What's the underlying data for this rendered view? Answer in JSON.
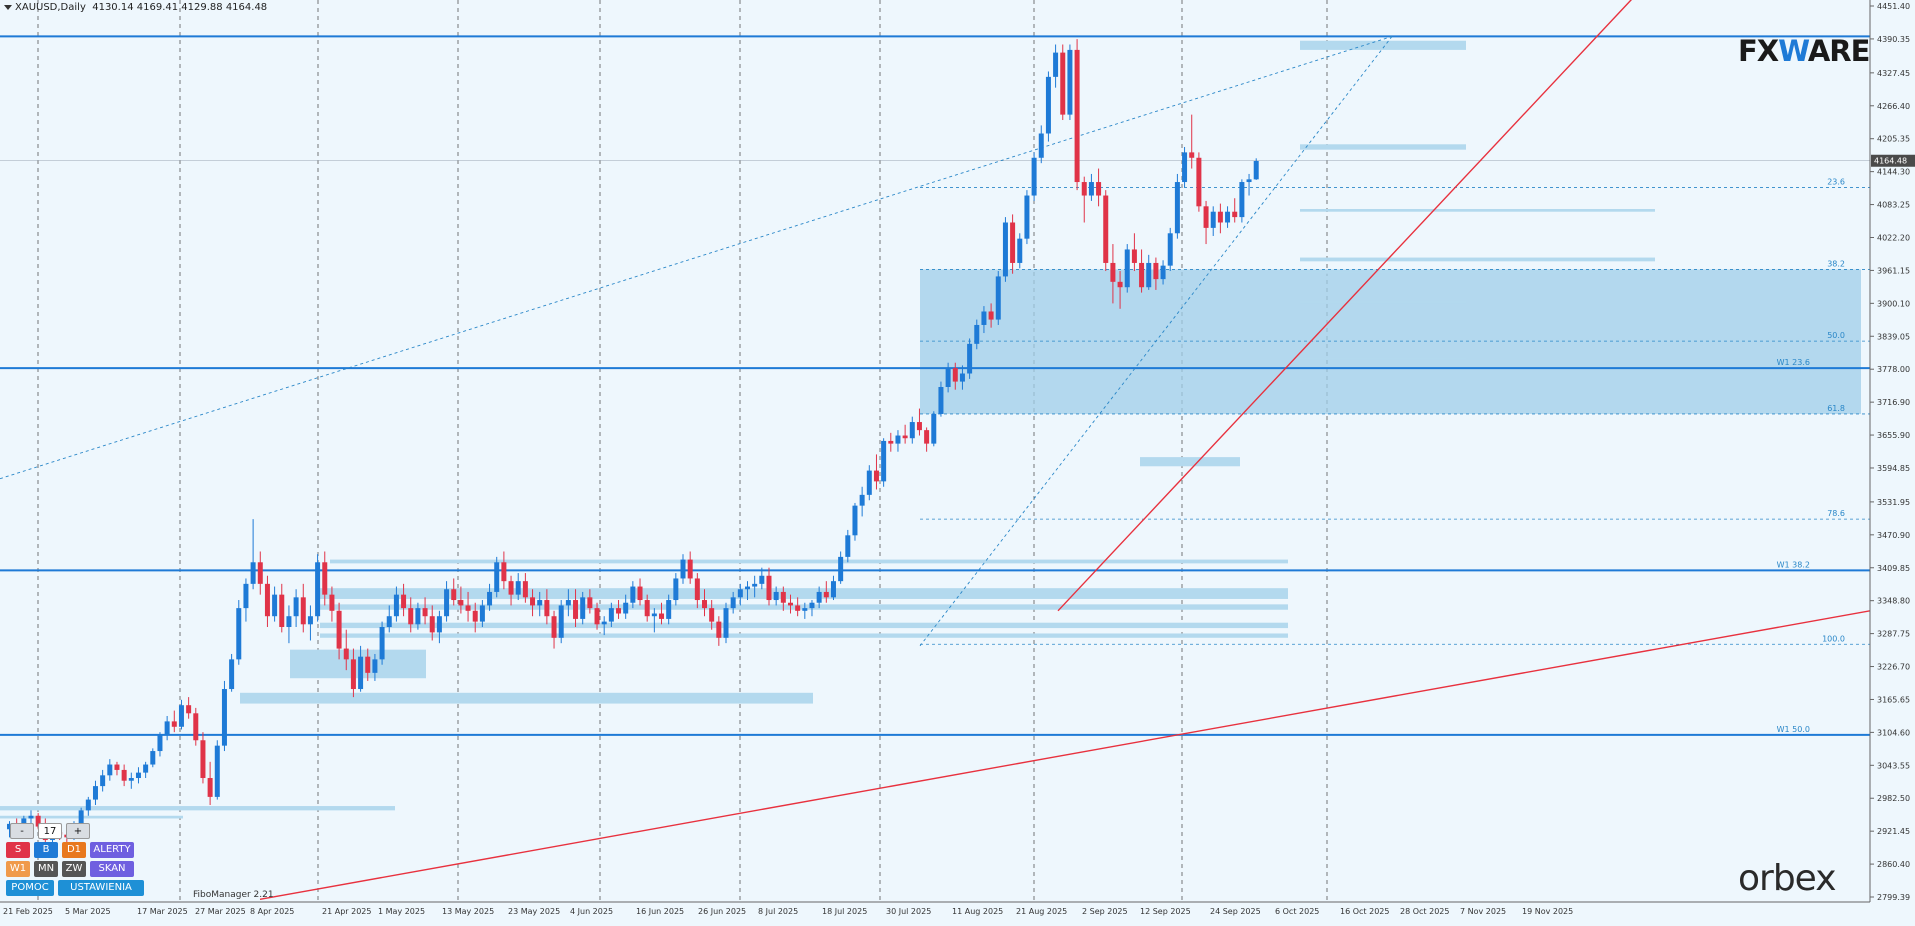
{
  "header": {
    "symbol": "XAUUSD,Daily",
    "ohlc": "4130.14 4169.41 4129.88 4164.48"
  },
  "logos": {
    "fx_prefix": "FX",
    "fx_w": "W",
    "fx_suffix": "ARE",
    "orbex": "orbex"
  },
  "colors": {
    "bull": "#1e7ad6",
    "bear": "#e03348",
    "zone": "#b3d9ee",
    "fib_box": "#9fcde8",
    "trend": "#e8313e",
    "level": "#1e7ad6"
  },
  "toolbar": {
    "minus": "-",
    "count": "17",
    "plus": "+",
    "s": "S",
    "b": "B",
    "d1": "D1",
    "alerty": "ALERTY",
    "w1": "W1",
    "mn": "MN",
    "zw": "ZW",
    "skan": "SKAN",
    "pomoc": "POMOC",
    "ustawienia": "USTAWIENIA"
  },
  "fibo_manager": "FiboManager 2.21",
  "chart_data": {
    "type": "candlestick",
    "symbol": "XAUUSD",
    "timeframe": "Daily",
    "ylim": [
      2799.39,
      4451.4
    ],
    "price_ticks": [
      4451.4,
      4390.35,
      4327.45,
      4266.4,
      4205.35,
      4144.3,
      4083.25,
      4022.2,
      3961.15,
      3900.1,
      3839.05,
      3778.0,
      3716.9,
      3655.9,
      3594.85,
      3531.95,
      3470.9,
      3409.85,
      3348.8,
      3287.75,
      3226.7,
      3165.65,
      3104.6,
      3043.55,
      2982.5,
      2921.45,
      2860.4,
      2799.39
    ],
    "current_price": 4164.48,
    "date_labels": [
      "21 Feb 2025",
      "5 Mar 2025",
      "17 Mar 2025",
      "27 Mar 2025",
      "8 Apr 2025",
      "21 Apr 2025",
      "1 May 2025",
      "13 May 2025",
      "23 May 2025",
      "4 Jun 2025",
      "16 Jun 2025",
      "26 Jun 2025",
      "8 Jul 2025",
      "18 Jul 2025",
      "30 Jul 2025",
      "11 Aug 2025",
      "21 Aug 2025",
      "2 Sep 2025",
      "12 Sep 2025",
      "24 Sep 2025",
      "6 Oct 2025",
      "16 Oct 2025",
      "28 Oct 2025",
      "7 Nov 2025",
      "19 Nov 2025"
    ],
    "fib_levels": [
      {
        "label": "23.6",
        "price": 4115
      },
      {
        "label": "38.2",
        "price": 3963
      },
      {
        "label": "50.0",
        "price": 3830
      },
      {
        "label": "61.8",
        "price": 3695
      },
      {
        "label": "78.6",
        "price": 3500
      },
      {
        "label": "100.0",
        "price": 3268
      }
    ],
    "weekly_levels": [
      {
        "label": "W1 23.6",
        "price": 3780
      },
      {
        "label": "W1 38.2",
        "price": 3405
      },
      {
        "label": "W1 50.0",
        "price": 3100
      }
    ],
    "candles": [
      [
        2925,
        2940,
        2910,
        2935
      ],
      [
        2935,
        2945,
        2915,
        2925
      ],
      [
        2925,
        2950,
        2915,
        2945
      ],
      [
        2945,
        2960,
        2935,
        2950
      ],
      [
        2950,
        2955,
        2925,
        2930
      ],
      [
        2930,
        2945,
        2900,
        2905
      ],
      [
        2905,
        2925,
        2895,
        2920
      ],
      [
        2920,
        2935,
        2905,
        2915
      ],
      [
        2915,
        2930,
        2900,
        2910
      ],
      [
        2910,
        2940,
        2905,
        2935
      ],
      [
        2935,
        2965,
        2930,
        2960
      ],
      [
        2960,
        2985,
        2950,
        2980
      ],
      [
        2980,
        3015,
        2970,
        3005
      ],
      [
        3005,
        3035,
        2995,
        3025
      ],
      [
        3025,
        3055,
        3015,
        3045
      ],
      [
        3045,
        3050,
        3025,
        3035
      ],
      [
        3035,
        3045,
        3005,
        3015
      ],
      [
        3015,
        3030,
        3000,
        3020
      ],
      [
        3020,
        3040,
        3010,
        3030
      ],
      [
        3030,
        3050,
        3020,
        3045
      ],
      [
        3045,
        3075,
        3040,
        3070
      ],
      [
        3070,
        3105,
        3060,
        3100
      ],
      [
        3100,
        3135,
        3090,
        3125
      ],
      [
        3125,
        3145,
        3105,
        3115
      ],
      [
        3115,
        3165,
        3110,
        3155
      ],
      [
        3155,
        3170,
        3130,
        3140
      ],
      [
        3140,
        3150,
        3080,
        3090
      ],
      [
        3090,
        3105,
        3010,
        3020
      ],
      [
        3020,
        3050,
        2970,
        2985
      ],
      [
        2985,
        3090,
        2980,
        3080
      ],
      [
        3080,
        3200,
        3070,
        3185
      ],
      [
        3185,
        3250,
        3180,
        3240
      ],
      [
        3240,
        3350,
        3230,
        3335
      ],
      [
        3335,
        3390,
        3310,
        3380
      ],
      [
        3380,
        3500,
        3370,
        3420
      ],
      [
        3420,
        3440,
        3360,
        3380
      ],
      [
        3380,
        3395,
        3300,
        3320
      ],
      [
        3320,
        3375,
        3310,
        3360
      ],
      [
        3360,
        3380,
        3290,
        3300
      ],
      [
        3300,
        3340,
        3270,
        3320
      ],
      [
        3320,
        3370,
        3300,
        3355
      ],
      [
        3355,
        3380,
        3290,
        3305
      ],
      [
        3305,
        3340,
        3275,
        3320
      ],
      [
        3320,
        3435,
        3310,
        3420
      ],
      [
        3420,
        3440,
        3340,
        3360
      ],
      [
        3360,
        3375,
        3310,
        3330
      ],
      [
        3330,
        3345,
        3240,
        3260
      ],
      [
        3260,
        3295,
        3220,
        3240
      ],
      [
        3240,
        3260,
        3170,
        3185
      ],
      [
        3185,
        3265,
        3180,
        3245
      ],
      [
        3245,
        3260,
        3200,
        3215
      ],
      [
        3215,
        3250,
        3200,
        3240
      ],
      [
        3240,
        3310,
        3230,
        3300
      ],
      [
        3300,
        3340,
        3290,
        3320
      ],
      [
        3320,
        3375,
        3310,
        3360
      ],
      [
        3360,
        3380,
        3320,
        3335
      ],
      [
        3335,
        3355,
        3290,
        3305
      ],
      [
        3305,
        3345,
        3295,
        3335
      ],
      [
        3335,
        3355,
        3305,
        3320
      ],
      [
        3320,
        3340,
        3275,
        3290
      ],
      [
        3290,
        3330,
        3270,
        3320
      ],
      [
        3320,
        3385,
        3310,
        3370
      ],
      [
        3370,
        3390,
        3340,
        3350
      ],
      [
        3350,
        3375,
        3325,
        3340
      ],
      [
        3340,
        3365,
        3310,
        3330
      ],
      [
        3330,
        3345,
        3290,
        3310
      ],
      [
        3310,
        3350,
        3300,
        3340
      ],
      [
        3340,
        3380,
        3330,
        3365
      ],
      [
        3365,
        3430,
        3355,
        3420
      ],
      [
        3420,
        3440,
        3370,
        3385
      ],
      [
        3385,
        3395,
        3340,
        3360
      ],
      [
        3360,
        3400,
        3350,
        3385
      ],
      [
        3385,
        3400,
        3345,
        3355
      ],
      [
        3355,
        3370,
        3320,
        3340
      ],
      [
        3340,
        3365,
        3320,
        3350
      ],
      [
        3350,
        3370,
        3305,
        3320
      ],
      [
        3320,
        3330,
        3260,
        3280
      ],
      [
        3280,
        3350,
        3270,
        3340
      ],
      [
        3340,
        3370,
        3320,
        3350
      ],
      [
        3350,
        3370,
        3300,
        3315
      ],
      [
        3315,
        3365,
        3305,
        3355
      ],
      [
        3355,
        3370,
        3325,
        3335
      ],
      [
        3335,
        3345,
        3295,
        3305
      ],
      [
        3305,
        3320,
        3285,
        3310
      ],
      [
        3310,
        3345,
        3300,
        3335
      ],
      [
        3335,
        3350,
        3315,
        3325
      ],
      [
        3325,
        3360,
        3315,
        3345
      ],
      [
        3345,
        3385,
        3335,
        3375
      ],
      [
        3375,
        3390,
        3340,
        3350
      ],
      [
        3350,
        3360,
        3310,
        3320
      ],
      [
        3320,
        3335,
        3290,
        3325
      ],
      [
        3325,
        3345,
        3305,
        3315
      ],
      [
        3315,
        3360,
        3305,
        3350
      ],
      [
        3350,
        3400,
        3340,
        3390
      ],
      [
        3390,
        3435,
        3380,
        3425
      ],
      [
        3425,
        3440,
        3380,
        3390
      ],
      [
        3390,
        3400,
        3335,
        3350
      ],
      [
        3350,
        3370,
        3320,
        3335
      ],
      [
        3335,
        3350,
        3295,
        3310
      ],
      [
        3310,
        3320,
        3265,
        3280
      ],
      [
        3280,
        3345,
        3270,
        3335
      ],
      [
        3335,
        3365,
        3325,
        3355
      ],
      [
        3355,
        3380,
        3340,
        3370
      ],
      [
        3370,
        3385,
        3350,
        3375
      ],
      [
        3375,
        3395,
        3355,
        3380
      ],
      [
        3380,
        3410,
        3370,
        3395
      ],
      [
        3395,
        3410,
        3340,
        3350
      ],
      [
        3350,
        3375,
        3340,
        3365
      ],
      [
        3365,
        3375,
        3330,
        3345
      ],
      [
        3345,
        3360,
        3325,
        3340
      ],
      [
        3340,
        3355,
        3320,
        3330
      ],
      [
        3330,
        3345,
        3315,
        3335
      ],
      [
        3335,
        3350,
        3320,
        3345
      ],
      [
        3345,
        3375,
        3335,
        3365
      ],
      [
        3365,
        3385,
        3345,
        3355
      ],
      [
        3355,
        3395,
        3350,
        3385
      ],
      [
        3385,
        3440,
        3380,
        3430
      ],
      [
        3430,
        3480,
        3420,
        3470
      ],
      [
        3470,
        3530,
        3460,
        3525
      ],
      [
        3525,
        3560,
        3505,
        3545
      ],
      [
        3545,
        3600,
        3535,
        3590
      ],
      [
        3590,
        3620,
        3555,
        3570
      ],
      [
        3570,
        3650,
        3560,
        3645
      ],
      [
        3645,
        3660,
        3625,
        3640
      ],
      [
        3640,
        3665,
        3625,
        3655
      ],
      [
        3655,
        3675,
        3640,
        3650
      ],
      [
        3650,
        3690,
        3640,
        3680
      ],
      [
        3680,
        3705,
        3655,
        3665
      ],
      [
        3665,
        3670,
        3625,
        3640
      ],
      [
        3640,
        3700,
        3635,
        3695
      ],
      [
        3695,
        3755,
        3690,
        3745
      ],
      [
        3745,
        3790,
        3735,
        3780
      ],
      [
        3780,
        3790,
        3740,
        3755
      ],
      [
        3755,
        3785,
        3740,
        3770
      ],
      [
        3770,
        3835,
        3760,
        3825
      ],
      [
        3825,
        3870,
        3815,
        3860
      ],
      [
        3860,
        3895,
        3845,
        3885
      ],
      [
        3885,
        3900,
        3855,
        3870
      ],
      [
        3870,
        3960,
        3860,
        3950
      ],
      [
        3950,
        4060,
        3940,
        4050
      ],
      [
        4050,
        4065,
        3955,
        3975
      ],
      [
        3975,
        4030,
        3965,
        4020
      ],
      [
        4020,
        4110,
        4010,
        4100
      ],
      [
        4100,
        4180,
        4090,
        4170
      ],
      [
        4170,
        4230,
        4160,
        4215
      ],
      [
        4215,
        4330,
        4200,
        4320
      ],
      [
        4320,
        4380,
        4300,
        4365
      ],
      [
        4365,
        4380,
        4240,
        4250
      ],
      [
        4250,
        4380,
        4240,
        4370
      ],
      [
        4370,
        4390,
        4110,
        4125
      ],
      [
        4125,
        4135,
        4050,
        4100
      ],
      [
        4100,
        4140,
        4090,
        4125
      ],
      [
        4125,
        4150,
        4080,
        4100
      ],
      [
        4100,
        4110,
        3960,
        3975
      ],
      [
        3975,
        4010,
        3900,
        3940
      ],
      [
        3940,
        3960,
        3890,
        3930
      ],
      [
        3930,
        4010,
        3920,
        4000
      ],
      [
        4000,
        4030,
        3960,
        3975
      ],
      [
        3975,
        4000,
        3920,
        3930
      ],
      [
        3930,
        3990,
        3925,
        3975
      ],
      [
        3975,
        3985,
        3925,
        3945
      ],
      [
        3945,
        3980,
        3935,
        3970
      ],
      [
        3970,
        4040,
        3960,
        4030
      ],
      [
        4030,
        4140,
        4020,
        4125
      ],
      [
        4125,
        4190,
        4115,
        4180
      ],
      [
        4180,
        4250,
        4150,
        4170
      ],
      [
        4170,
        4180,
        4070,
        4080
      ],
      [
        4080,
        4090,
        4010,
        4040
      ],
      [
        4040,
        4080,
        4025,
        4070
      ],
      [
        4070,
        4085,
        4030,
        4050
      ],
      [
        4050,
        4080,
        4040,
        4070
      ],
      [
        4070,
        4095,
        4050,
        4060
      ],
      [
        4060,
        4130,
        4050,
        4125
      ],
      [
        4125,
        4140,
        4100,
        4130
      ],
      [
        4130,
        4169,
        4129,
        4164
      ]
    ]
  }
}
